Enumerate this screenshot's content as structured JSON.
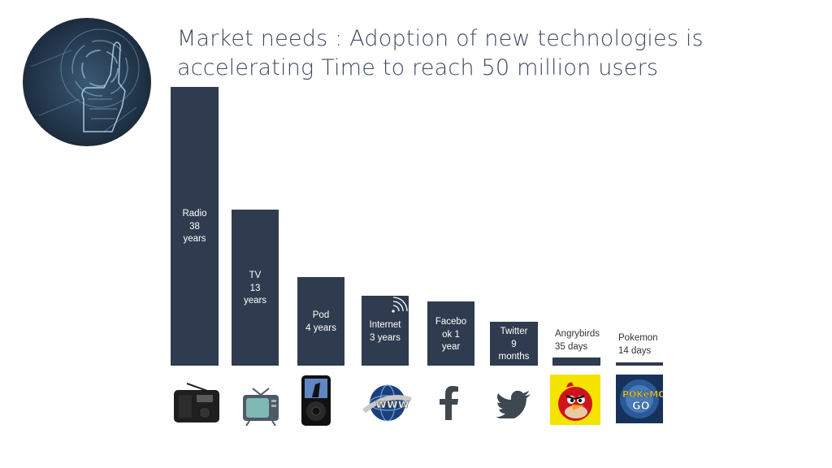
{
  "title": {
    "line1": "Market needs : Adoption of new technologies is",
    "line2": "accelerating Time to reach 50 million users"
  },
  "colors": {
    "bar": "#2f3b4e",
    "title": "#3d4a5e",
    "logo_bg": "#24384d",
    "logo_line": "#7fb2d9"
  },
  "chart_data": {
    "type": "bar",
    "title": "Market needs : Adoption of new technologies is accelerating Time to reach 50 million users",
    "categories": [
      "Radio",
      "TV",
      "Pod",
      "Internet",
      "Facebook",
      "Twitter",
      "Angrybirds",
      "Pokemon"
    ],
    "values_years": [
      38,
      13,
      4,
      3,
      1,
      0.75,
      0.096,
      0.038
    ],
    "bar_labels": [
      "Radio\n38\nyears",
      "TV\n13\nyears",
      "Pod\n4 years",
      "Internet\n3 years",
      "Facebo\nok 1\nyear",
      "Twitter\n9\nmonths",
      "Angrybirds\n35 days",
      "Pokemon\n14 days"
    ],
    "icons": [
      "radio-icon",
      "tv-icon",
      "ipod-icon",
      "www-globe-icon",
      "facebook-icon",
      "twitter-icon",
      "angry-birds-icon",
      "pokemon-go-icon"
    ],
    "scale": "non-linear (relative heights)"
  }
}
